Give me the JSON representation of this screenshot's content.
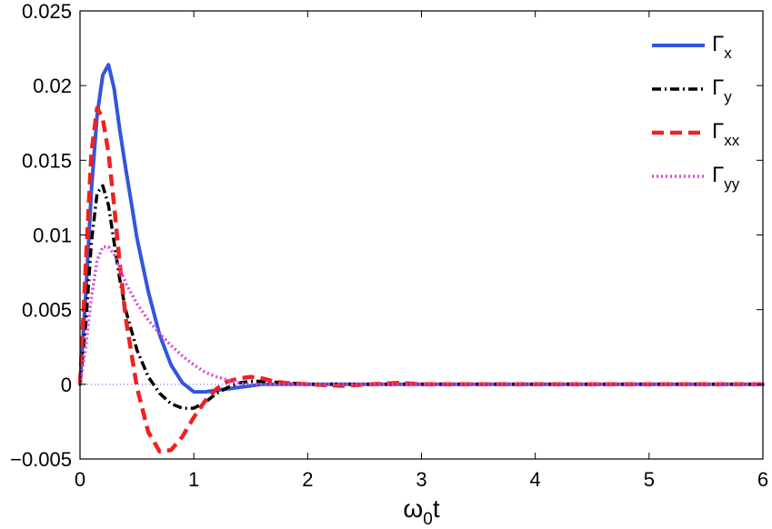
{
  "chart_data": {
    "type": "line",
    "title": "",
    "xlabel_main": "ω",
    "xlabel_sub": "0",
    "xlabel_tail": "t",
    "ylabel": "",
    "xlim": [
      0,
      6
    ],
    "ylim": [
      -0.005,
      0.025
    ],
    "x_ticks": [
      0,
      1,
      2,
      3,
      4,
      5,
      6
    ],
    "x_tick_labels": [
      "0",
      "1",
      "2",
      "3",
      "4",
      "5",
      "6"
    ],
    "y_ticks": [
      -0.005,
      0,
      0.005,
      0.01,
      0.015,
      0.02,
      0.025
    ],
    "y_tick_labels": [
      "−0.005",
      "0",
      "0.005",
      "0.01",
      "0.015",
      "0.02",
      "0.025"
    ],
    "grid": false,
    "legend_position": "top-right",
    "series": [
      {
        "name": "Γ",
        "sub": "x",
        "color": "#3355dd",
        "style": "solid",
        "x": [
          0,
          0.05,
          0.1,
          0.15,
          0.2,
          0.25,
          0.3,
          0.35,
          0.4,
          0.45,
          0.5,
          0.6,
          0.7,
          0.8,
          0.9,
          1.0,
          1.1,
          1.2,
          1.3,
          1.4,
          1.5,
          1.6,
          1.8,
          2.0,
          2.5,
          3.0,
          4.0,
          5.0,
          6.0
        ],
        "y": [
          0,
          0.006,
          0.013,
          0.018,
          0.0207,
          0.0214,
          0.0198,
          0.017,
          0.0145,
          0.0122,
          0.0098,
          0.0062,
          0.0033,
          0.0013,
          0.0001,
          -0.0005,
          -0.0005,
          -0.0004,
          -0.0003,
          -0.0002,
          -0.0001,
          0.0,
          0.0,
          0.0,
          0.0,
          0.0,
          0.0,
          0.0,
          0.0
        ]
      },
      {
        "name": "Γ",
        "sub": "y",
        "color": "#000000",
        "style": "dashdot",
        "x": [
          0,
          0.05,
          0.1,
          0.15,
          0.2,
          0.25,
          0.3,
          0.35,
          0.4,
          0.5,
          0.6,
          0.7,
          0.8,
          0.9,
          1.0,
          1.1,
          1.2,
          1.3,
          1.4,
          1.5,
          1.6,
          1.8,
          2.0,
          2.5,
          3.0,
          4.0,
          5.0,
          6.0
        ],
        "y": [
          0,
          0.004,
          0.0095,
          0.0128,
          0.0133,
          0.012,
          0.0095,
          0.007,
          0.005,
          0.0023,
          0.0005,
          -0.0006,
          -0.0013,
          -0.0016,
          -0.0016,
          -0.0012,
          -0.0006,
          -0.0002,
          0.0001,
          0.0002,
          0.0002,
          0.0001,
          0.0,
          0.0,
          0.0,
          0.0,
          0.0,
          0.0
        ]
      },
      {
        "name": "Γ",
        "sub": "xx",
        "color": "#ee2222",
        "style": "dashed",
        "x": [
          0,
          0.05,
          0.1,
          0.15,
          0.2,
          0.25,
          0.3,
          0.35,
          0.4,
          0.5,
          0.6,
          0.7,
          0.8,
          0.9,
          1.0,
          1.1,
          1.2,
          1.3,
          1.4,
          1.5,
          1.6,
          1.7,
          1.8,
          2.0,
          2.3,
          2.8,
          3.0,
          4.0,
          5.0,
          6.0
        ],
        "y": [
          0,
          0.008,
          0.0155,
          0.0185,
          0.0178,
          0.0155,
          0.012,
          0.008,
          0.0045,
          -0.0002,
          -0.0032,
          -0.0045,
          -0.0044,
          -0.0035,
          -0.0022,
          -0.0011,
          -0.0003,
          0.0002,
          0.0004,
          0.0005,
          0.0004,
          0.0002,
          0.0001,
          0.0,
          -0.0001,
          0.0001,
          0.0,
          0.0,
          0.0,
          0.0
        ]
      },
      {
        "name": "Γ",
        "sub": "yy",
        "color": "#dd44dd",
        "style": "dotted",
        "x": [
          0,
          0.05,
          0.1,
          0.15,
          0.2,
          0.25,
          0.3,
          0.35,
          0.4,
          0.5,
          0.6,
          0.7,
          0.8,
          0.9,
          1.0,
          1.1,
          1.2,
          1.3,
          1.4,
          1.5,
          1.7,
          2.0,
          2.5,
          3.0,
          4.0,
          5.0,
          6.0
        ],
        "y": [
          0,
          0.0025,
          0.0058,
          0.0083,
          0.0092,
          0.0092,
          0.0087,
          0.0078,
          0.0068,
          0.0054,
          0.0043,
          0.0034,
          0.0026,
          0.0019,
          0.0013,
          0.0008,
          0.0005,
          0.0003,
          0.0001,
          0.0,
          0.0,
          0.0,
          0.0,
          0.0,
          0.0,
          0.0,
          0.0
        ]
      }
    ]
  }
}
